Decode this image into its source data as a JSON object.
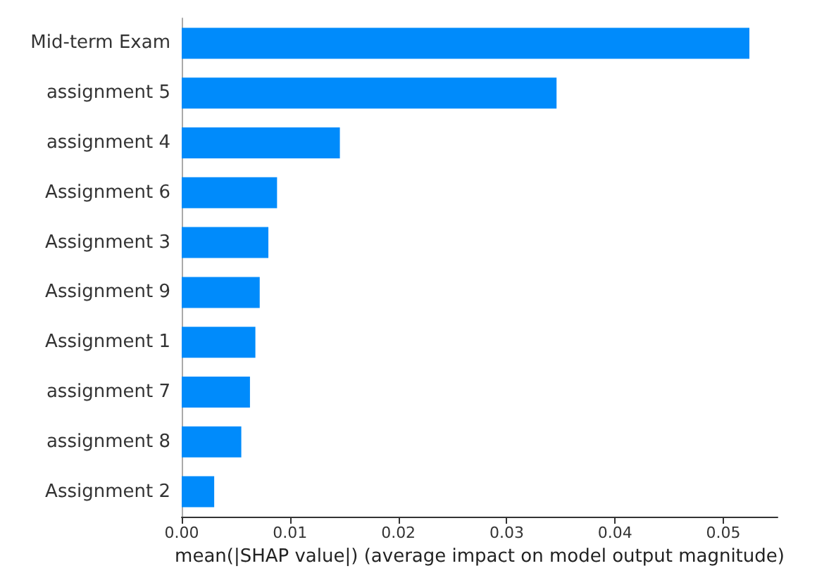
{
  "chart_data": {
    "type": "bar",
    "orientation": "horizontal",
    "xlabel": "mean(|SHAP value|) (average impact on model output magnitude)",
    "categories": [
      "Mid-term Exam",
      "assignment 5",
      "assignment 4",
      "Assignment 6",
      "Assignment 3",
      "Assignment 9",
      "Assignment 1",
      "assignment 7",
      "assignment 8",
      "Assignment 2"
    ],
    "values": [
      0.0524,
      0.0346,
      0.0146,
      0.0088,
      0.008,
      0.0072,
      0.0068,
      0.0063,
      0.0055,
      0.003
    ],
    "color": "#008bfb",
    "xlim": [
      0,
      0.055
    ],
    "xticks": [
      {
        "value": 0,
        "label": "0.00"
      },
      {
        "value": 0.01,
        "label": "0.01"
      },
      {
        "value": 0.02,
        "label": "0.02"
      },
      {
        "value": 0.03,
        "label": "0.03"
      },
      {
        "value": 0.04,
        "label": "0.04"
      },
      {
        "value": 0.05,
        "label": "0.05"
      }
    ],
    "grid": false
  }
}
